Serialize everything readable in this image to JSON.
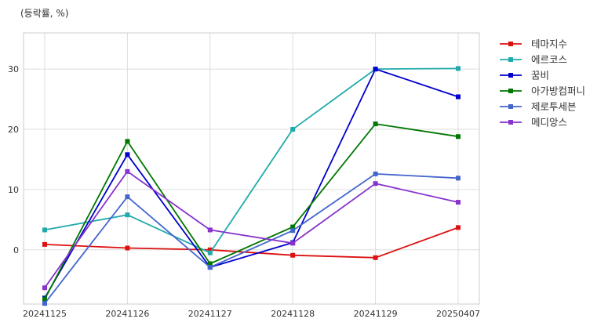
{
  "chart_data": {
    "type": "line",
    "unit_label": "(등락률, %)",
    "x": [
      "20241125",
      "20241126",
      "20241127",
      "20241128",
      "20241129",
      "20250407"
    ],
    "ylim": [
      -9,
      36
    ],
    "yticks": [
      0,
      10,
      20,
      30
    ],
    "grid": true,
    "legend_position": "outside-right",
    "series": [
      {
        "name": "테마지수",
        "color": "#dd1111",
        "values": [
          0.9,
          0.3,
          0.0,
          -0.9,
          -1.3,
          3.7
        ]
      },
      {
        "name": "에르코스",
        "color": "#22aaaa",
        "values": [
          3.3,
          5.8,
          -0.5,
          20.0,
          30.0,
          30.1
        ]
      },
      {
        "name": "꿈비",
        "color": "#0000cc",
        "values": [
          -8.0,
          15.8,
          -2.9,
          1.2,
          30.0,
          25.4
        ]
      },
      {
        "name": "아가방컴퍼니",
        "color": "#007700",
        "values": [
          -8.2,
          18.0,
          -2.3,
          3.8,
          20.9,
          18.8
        ]
      },
      {
        "name": "제로투세븐",
        "color": "#4466cc",
        "values": [
          -8.9,
          8.8,
          -2.9,
          3.2,
          12.6,
          11.9
        ]
      },
      {
        "name": "메디앙스",
        "color": "#8833cc",
        "values": [
          -6.3,
          13.0,
          3.3,
          1.1,
          11.0,
          7.9
        ]
      }
    ]
  }
}
